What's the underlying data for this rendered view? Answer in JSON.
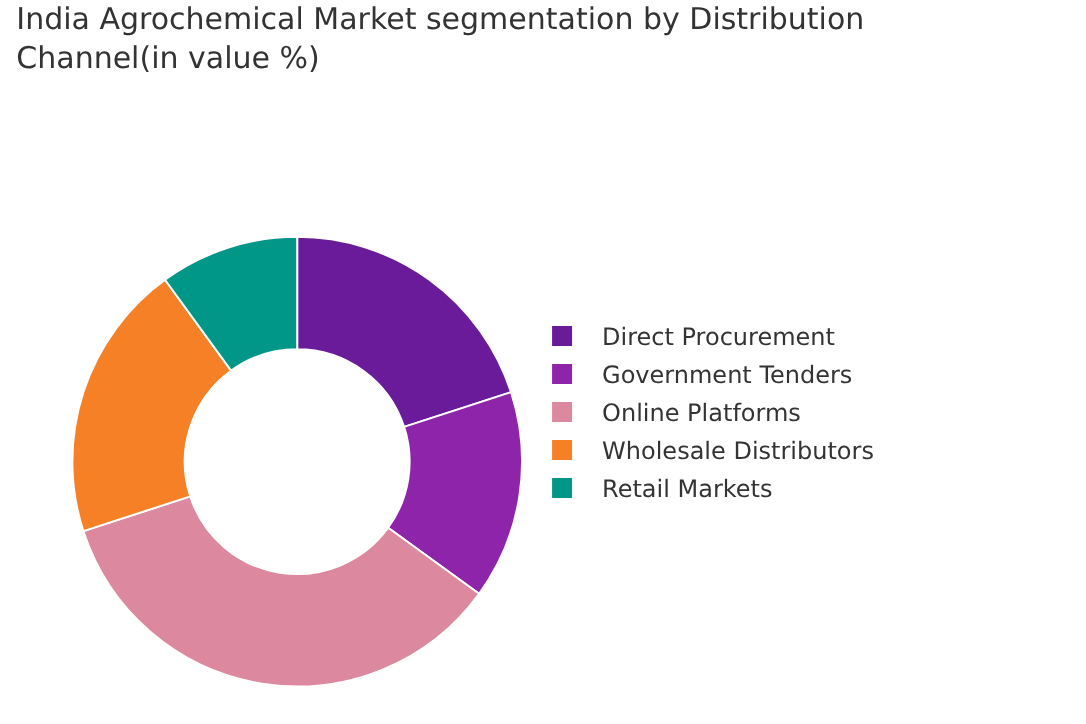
{
  "chart_data": {
    "type": "donut",
    "title": "India Agrochemical Market segmentation by Distribution Channel(in value %)",
    "categories": [
      "Direct Procurement",
      "Government Tenders",
      "Online Platforms",
      "Wholesale Distributors",
      "Retail Markets"
    ],
    "values": [
      20,
      15,
      35,
      20,
      10
    ],
    "colors": [
      "#6a1b9a",
      "#8e24aa",
      "#dc889e",
      "#f58025",
      "#009688"
    ],
    "legend": "right"
  }
}
